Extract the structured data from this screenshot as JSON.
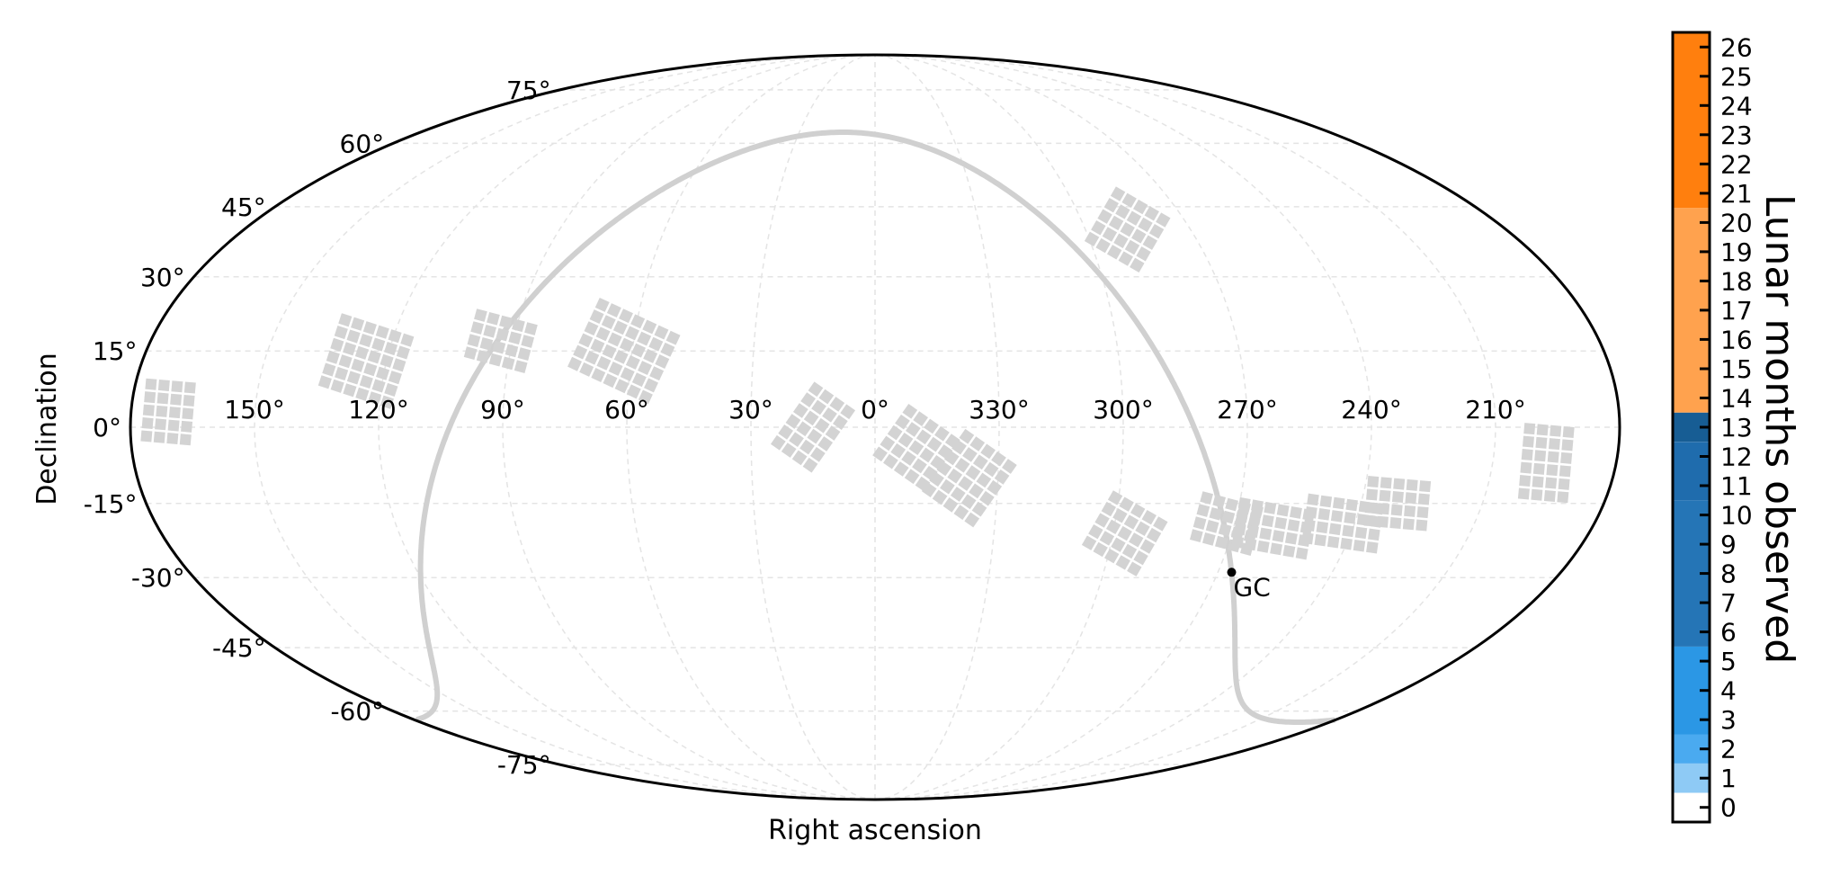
{
  "chart_data": {
    "type": "scatter",
    "projection": "mollweide",
    "xlabel": "Right ascension",
    "ylabel": "Declination",
    "ra_tick_labels": [
      "150°",
      "120°",
      "90°",
      "60°",
      "30°",
      "0°",
      "330°",
      "300°",
      "270°",
      "240°",
      "210°"
    ],
    "ra_tick_values": [
      150,
      120,
      90,
      60,
      30,
      0,
      330,
      300,
      270,
      240,
      210
    ],
    "dec_tick_labels": [
      "75°",
      "60°",
      "45°",
      "30°",
      "15°",
      "0°",
      "-15°",
      "-30°",
      "-45°",
      "-60°",
      "-75°"
    ],
    "dec_tick_values": [
      75,
      60,
      45,
      30,
      15,
      0,
      -15,
      -30,
      -45,
      -60,
      -75
    ],
    "grid": true,
    "galactic_plane_color": "#d0d0d0",
    "field_color": "#d3d3d3",
    "galactic_center": {
      "label": "GC",
      "ra": 266.4,
      "dec": -28.9
    },
    "fields": [
      {
        "ra": 171,
        "dec": 3,
        "cols": 4,
        "rows": 5,
        "tilt": 5
      },
      {
        "ra": 125,
        "dec": 13,
        "cols": 6,
        "rows": 6,
        "tilt": 18
      },
      {
        "ra": 93,
        "dec": 17,
        "cols": 5,
        "rows": 4,
        "tilt": 15
      },
      {
        "ra": 62,
        "dec": 15,
        "cols": 7,
        "rows": 6,
        "tilt": 25
      },
      {
        "ra": 15,
        "dec": 0,
        "cols": 4,
        "rows": 6,
        "tilt": 35
      },
      {
        "ra": 350,
        "dec": -4,
        "cols": 5,
        "rows": 5,
        "tilt": 35
      },
      {
        "ra": 337,
        "dec": -10,
        "cols": 5,
        "rows": 6,
        "tilt": 35
      },
      {
        "ra": 288,
        "dec": 40,
        "cols": 5,
        "rows": 5,
        "tilt": 30
      },
      {
        "ra": 297,
        "dec": -21,
        "cols": 5,
        "rows": 5,
        "tilt": 30
      },
      {
        "ra": 272,
        "dec": -19,
        "cols": 5,
        "rows": 4,
        "tilt": 15
      },
      {
        "ra": 260,
        "dec": -20,
        "cols": 6,
        "rows": 4,
        "tilt": 10
      },
      {
        "ra": 243,
        "dec": -19,
        "cols": 6,
        "rows": 4,
        "tilt": 8
      },
      {
        "ra": 231,
        "dec": -15,
        "cols": 5,
        "rows": 4,
        "tilt": 5
      },
      {
        "ra": 197,
        "dec": -7,
        "cols": 4,
        "rows": 6,
        "tilt": 5
      }
    ],
    "colorbar": {
      "label": "Lunar months observed",
      "ticks": [
        "0",
        "1",
        "2",
        "3",
        "4",
        "5",
        "6",
        "7",
        "8",
        "9",
        "10",
        "11",
        "12",
        "13",
        "14",
        "15",
        "16",
        "17",
        "18",
        "19",
        "20",
        "21",
        "22",
        "23",
        "24",
        "25",
        "26"
      ],
      "bands": [
        {
          "from": 0,
          "to": 1,
          "color": "#ffffff"
        },
        {
          "from": 1,
          "to": 2,
          "color": "#8ecaf5"
        },
        {
          "from": 2,
          "to": 3,
          "color": "#4aaaf0"
        },
        {
          "from": 3,
          "to": 6,
          "color": "#2b97e5"
        },
        {
          "from": 6,
          "to": 11,
          "color": "#2575b6"
        },
        {
          "from": 11,
          "to": 13,
          "color": "#1f6cad"
        },
        {
          "from": 13,
          "to": 14,
          "color": "#175d94"
        },
        {
          "from": 14,
          "to": 21,
          "color": "#ffa24e"
        },
        {
          "from": 21,
          "to": 27,
          "color": "#ff7f0e"
        }
      ]
    }
  }
}
